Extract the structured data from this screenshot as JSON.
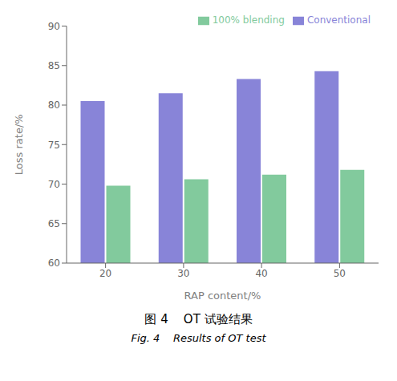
{
  "chart_data": {
    "type": "bar",
    "title": "图 4    OT 试验结果",
    "subtitle": "Fig. 4    Results of OT test",
    "x_label": "RAP content/%",
    "y_label": "Loss rate/%",
    "categories": [
      "20",
      "30",
      "40",
      "50"
    ],
    "series": [
      {
        "name": "Conventional",
        "color": "#8884d8",
        "values": [
          80.5,
          81.5,
          83.3,
          84.3
        ]
      },
      {
        "name": "100% blending",
        "color": "#82ca9d",
        "values": [
          69.8,
          70.6,
          71.2,
          71.8
        ]
      }
    ],
    "ylim": [
      60,
      90
    ],
    "yticks": [
      60,
      65,
      70,
      75,
      80,
      85,
      90
    ],
    "grid": false,
    "legend": "upper right"
  }
}
